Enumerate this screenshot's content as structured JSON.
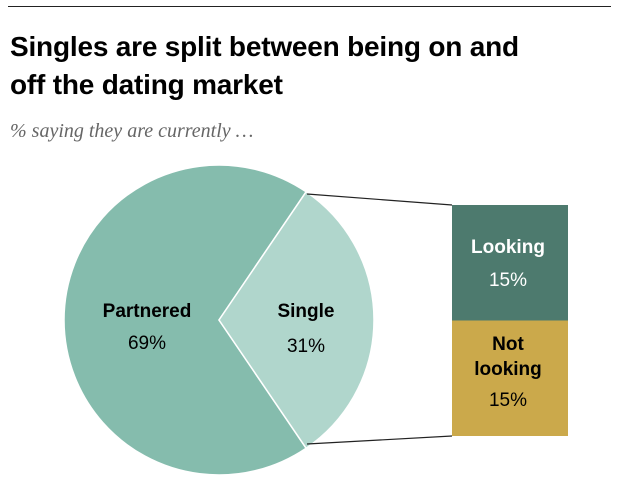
{
  "header": {
    "title_line1": "Singles are split between being on and",
    "title_line2": "off the dating market",
    "subtitle": "% saying they are currently …"
  },
  "colors": {
    "partnered": "#85bcad",
    "single": "#b0d6cc",
    "looking": "#4d7a6e",
    "not_looking": "#cba94b",
    "connector": "#222222"
  },
  "chart_data": [
    {
      "type": "pie",
      "slices": [
        {
          "label": "Partnered",
          "value": 69,
          "value_label": "69%"
        },
        {
          "label": "Single",
          "value": 31,
          "value_label": "31%"
        }
      ]
    },
    {
      "type": "bar",
      "stacked": true,
      "orientation": "vertical",
      "breakdown_of": "Single",
      "segments": [
        {
          "label_lines": [
            "Looking"
          ],
          "value": 15,
          "value_label": "15%"
        },
        {
          "label_lines": [
            "Not",
            "looking"
          ],
          "value": 15,
          "value_label": "15%"
        }
      ]
    }
  ]
}
